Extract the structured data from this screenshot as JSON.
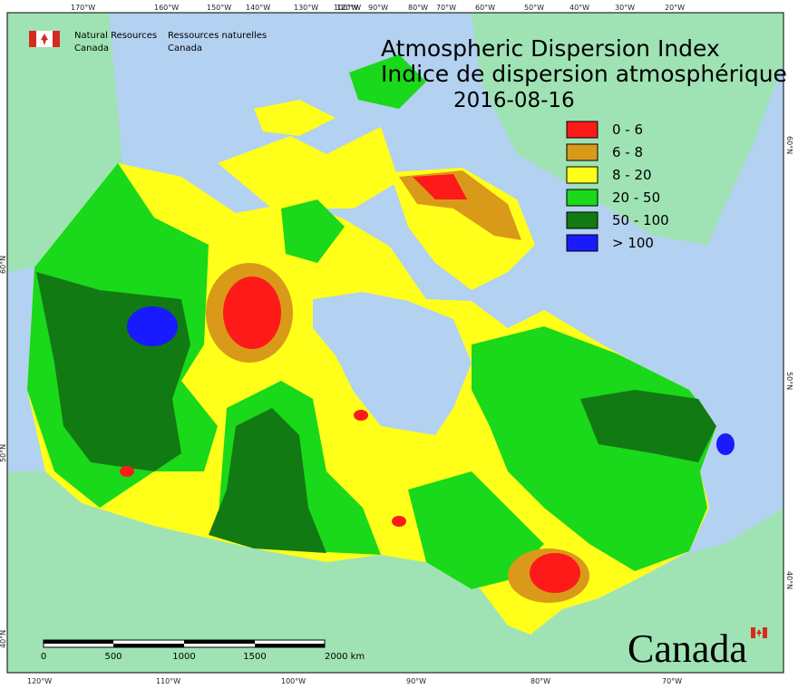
{
  "header": {
    "org_en": [
      "Natural Resources",
      "Canada"
    ],
    "org_fr": [
      "Ressources naturelles",
      "Canada"
    ],
    "title": "Atmospheric Dispersion Index",
    "subtitle": "Indice de dispersion atmosphérique",
    "date": "2016-08-16"
  },
  "legend": {
    "items": [
      {
        "label": "0 - 6",
        "color": "#ff1a1a"
      },
      {
        "label": "6 - 8",
        "color": "#d99a1a"
      },
      {
        "label": "8 - 20",
        "color": "#ffff1a"
      },
      {
        "label": "20 - 50",
        "color": "#1ad81a"
      },
      {
        "label": "50 - 100",
        "color": "#127a12"
      },
      {
        "label": "> 100",
        "color": "#1a1aff"
      }
    ]
  },
  "graticule": {
    "top": [
      "170°W",
      "160°W",
      "150°W",
      "140°W",
      "130°W",
      "120°W",
      "100°W",
      "90°W",
      "80°W",
      "70°W",
      "60°W",
      "50°W",
      "40°W",
      "30°W",
      "20°W"
    ],
    "bottom": [
      "120°W",
      "110°W",
      "100°W",
      "90°W",
      "80°W",
      "70°W"
    ],
    "left": [
      "60°N",
      "50°N",
      "40°N"
    ],
    "right": [
      "60°N",
      "50°N",
      "40°N"
    ]
  },
  "scale_bar": {
    "labels": [
      "0",
      "500",
      "1000",
      "1500",
      "2000 km"
    ]
  },
  "wordmark": "Canada"
}
